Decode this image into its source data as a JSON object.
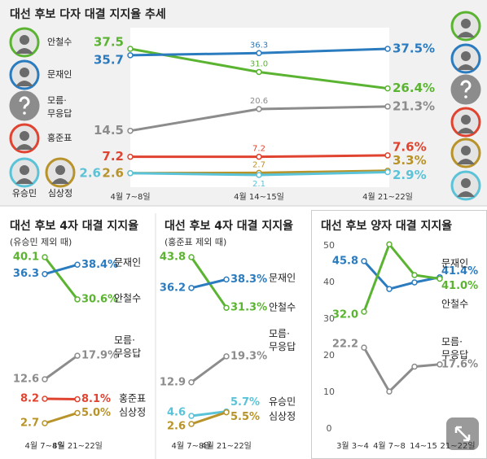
{
  "chart_data": [
    {
      "type": "line",
      "title": "대선 후보 다자 대결 지지율 추세",
      "categories": [
        "4월 7~8일",
        "4월 14~15일",
        "4월 21~22일"
      ],
      "series": [
        {
          "name": "안철수",
          "color": "#5bb431",
          "values": [
            37.5,
            31.0,
            26.4
          ],
          "value_labels": [
            "37.5",
            "31.0",
            "26.4%"
          ]
        },
        {
          "name": "문재인",
          "color": "#2b7bbf",
          "values": [
            35.7,
            36.3,
            37.5
          ],
          "value_labels": [
            "35.7",
            "36.3",
            "37.5%"
          ]
        },
        {
          "name": "모름·무응답",
          "color": "#8c8c8c",
          "values": [
            14.5,
            20.6,
            21.3
          ],
          "value_labels": [
            "14.5",
            "20.6",
            "21.3%"
          ]
        },
        {
          "name": "홍준표",
          "color": "#e0432f",
          "values": [
            7.2,
            7.2,
            7.6
          ],
          "value_labels": [
            "7.2",
            "7.2",
            "7.6%"
          ]
        },
        {
          "name": "심상정",
          "color": "#b8932a",
          "values": [
            2.6,
            2.7,
            3.3
          ],
          "value_labels": [
            "2.6",
            "2.7",
            "3.3%"
          ]
        },
        {
          "name": "유승민",
          "color": "#5bc3d8",
          "values": [
            2.6,
            2.1,
            2.9
          ],
          "value_labels": [
            "2.6",
            "2.1",
            "2.9%"
          ]
        }
      ]
    },
    {
      "type": "line",
      "title": "대선 후보 4자 대결 지지율",
      "subtitle": "(유승민 제외 때)",
      "categories": [
        "4월 7~8일",
        "4월 21~22일"
      ],
      "series": [
        {
          "name": "안철수",
          "color": "#5bb431",
          "values": [
            40.1,
            30.6
          ],
          "value_labels": [
            "40.1",
            "30.6%"
          ]
        },
        {
          "name": "문재인",
          "color": "#2b7bbf",
          "values": [
            36.3,
            38.4
          ],
          "value_labels": [
            "36.3",
            "38.4%"
          ]
        },
        {
          "name": "모름·무응답",
          "color": "#8c8c8c",
          "values": [
            12.6,
            17.9
          ],
          "value_labels": [
            "12.6",
            "17.9%"
          ]
        },
        {
          "name": "홍준표",
          "color": "#e0432f",
          "values": [
            8.2,
            8.1
          ],
          "value_labels": [
            "8.2",
            "8.1%"
          ]
        },
        {
          "name": "심상정",
          "color": "#b8932a",
          "values": [
            2.7,
            5.0
          ],
          "value_labels": [
            "2.7",
            "5.0%"
          ]
        }
      ]
    },
    {
      "type": "line",
      "title": "대선 후보 4자 대결 지지율",
      "subtitle": "(홍준표 제외 때)",
      "categories": [
        "4월 7~8일",
        "4월 21~22일"
      ],
      "series": [
        {
          "name": "안철수",
          "color": "#5bb431",
          "values": [
            43.8,
            31.3
          ],
          "value_labels": [
            "43.8",
            "31.3%"
          ]
        },
        {
          "name": "문재인",
          "color": "#2b7bbf",
          "values": [
            36.2,
            38.3
          ],
          "value_labels": [
            "36.2",
            "38.3%"
          ]
        },
        {
          "name": "모름·무응답",
          "color": "#8c8c8c",
          "values": [
            12.9,
            19.3
          ],
          "value_labels": [
            "12.9",
            "19.3%"
          ]
        },
        {
          "name": "유승민",
          "color": "#5bc3d8",
          "values": [
            4.6,
            5.7
          ],
          "value_labels": [
            "4.6",
            "5.7%"
          ]
        },
        {
          "name": "심상정",
          "color": "#b8932a",
          "values": [
            2.6,
            5.5
          ],
          "value_labels": [
            "2.6",
            "5.5%"
          ]
        }
      ]
    },
    {
      "type": "line",
      "title": "대선 후보 양자 대결 지지율",
      "categories": [
        "3월 3~4",
        "4월 7~8",
        "14~15",
        "21~22일"
      ],
      "ylim": [
        0,
        50
      ],
      "yticks": [
        0,
        10,
        20,
        30,
        40,
        50
      ],
      "series": [
        {
          "name": "문재인",
          "color": "#2b7bbf",
          "values": [
            45.8,
            38.2,
            40.0,
            41.4
          ],
          "value_labels": [
            "45.8",
            null,
            null,
            "41.4%"
          ]
        },
        {
          "name": "안철수",
          "color": "#5bb431",
          "values": [
            32.0,
            50.4,
            42.0,
            41.0
          ],
          "value_labels": [
            "32.0",
            null,
            null,
            "41.0%"
          ]
        },
        {
          "name": "모름·무응답",
          "color": "#8c8c8c",
          "values": [
            22.2,
            10.2,
            17.0,
            17.6
          ],
          "value_labels": [
            "22.2",
            null,
            null,
            "17.6%"
          ]
        }
      ]
    }
  ]
}
